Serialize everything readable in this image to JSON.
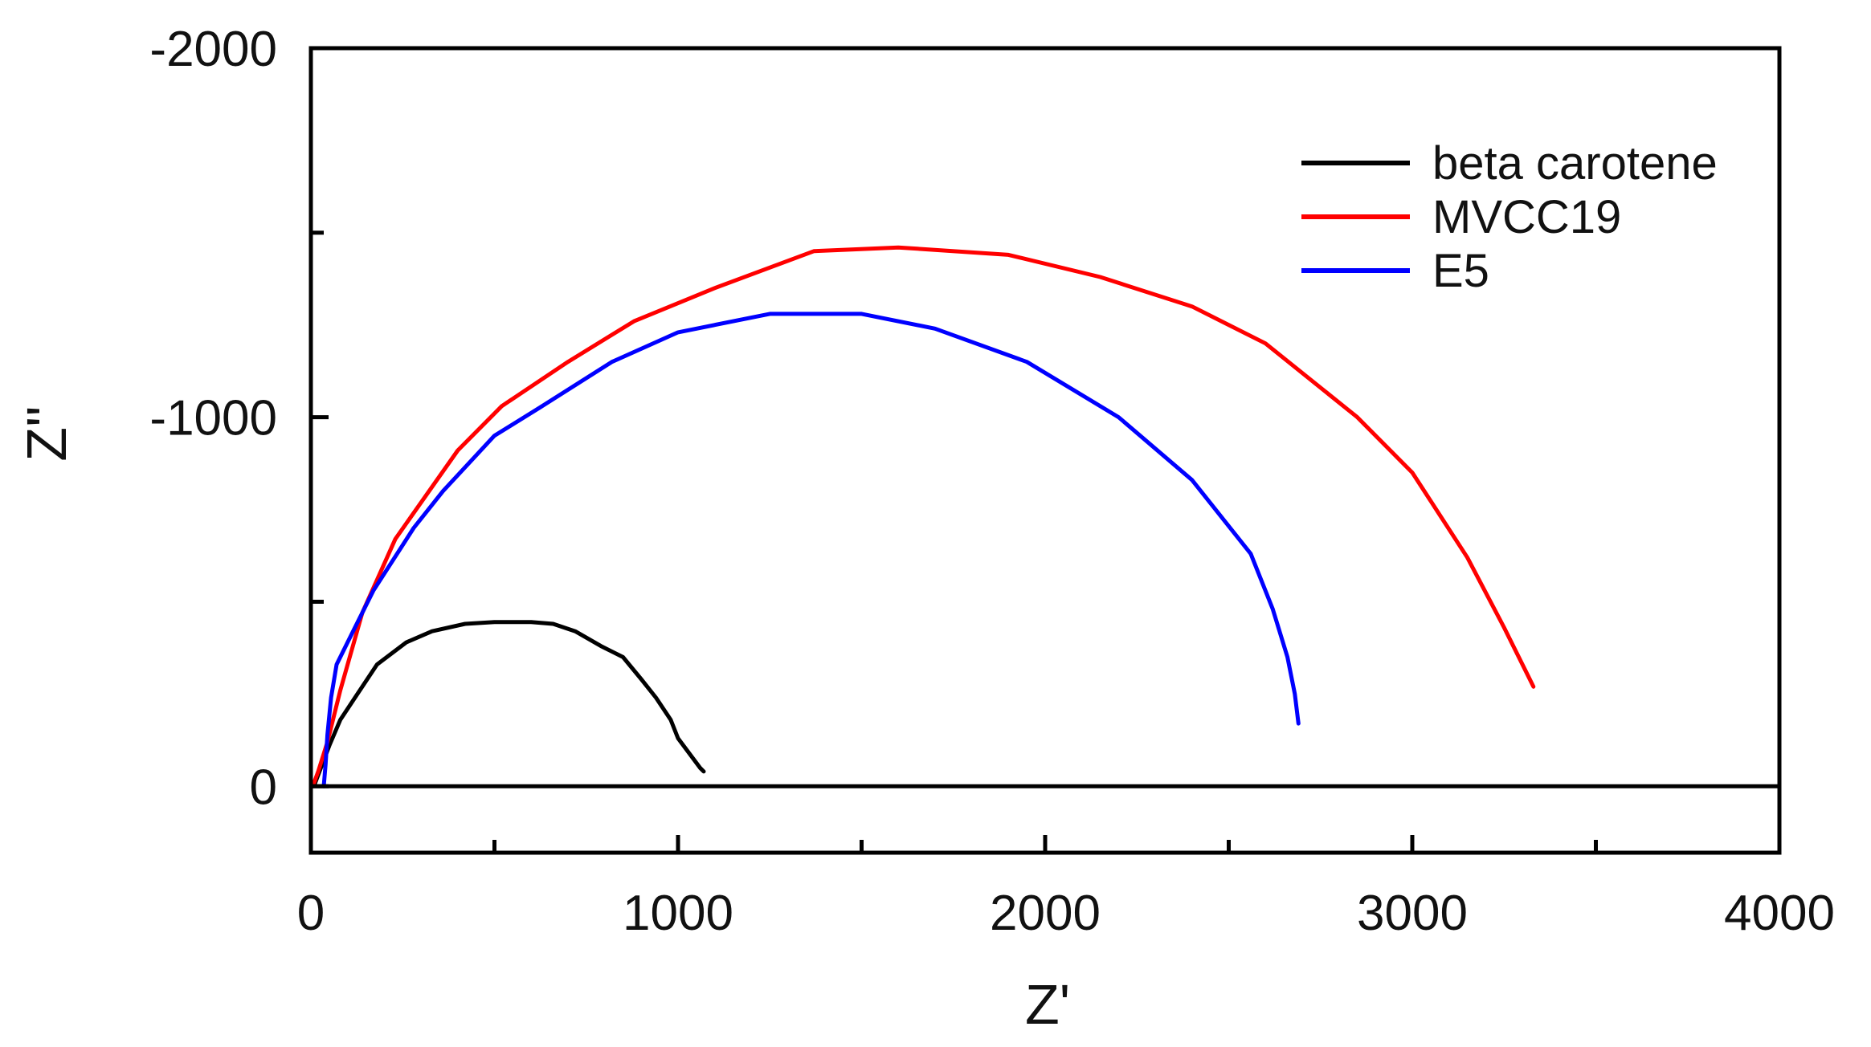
{
  "chart_data": {
    "type": "line",
    "title": "",
    "xlabel": "Z'",
    "ylabel": "Z''",
    "xlim": [
      0,
      4000
    ],
    "ylim": [
      180,
      -2000
    ],
    "x_ticks": [
      0,
      1000,
      2000,
      3000,
      4000
    ],
    "x_tick_labels": [
      "0",
      "1000",
      "2000",
      "3000",
      "4000"
    ],
    "x_minor_ticks": [
      500,
      1500,
      2500,
      3500
    ],
    "y_ticks": [
      -2000,
      -1000,
      0
    ],
    "y_tick_labels": [
      "-2000",
      "-1000",
      "0"
    ],
    "y_minor_ticks": [
      -1500,
      -500
    ],
    "zero_line": true,
    "grid": false,
    "legend_position": "top-right",
    "series": [
      {
        "name": "beta carotene",
        "color": "#000000",
        "x": [
          10,
          50,
          80,
          120,
          180,
          260,
          330,
          420,
          500,
          600,
          660,
          720,
          790,
          850,
          900,
          940,
          980,
          1000,
          1030,
          1060,
          1070
        ],
        "y": [
          -5,
          -110,
          -180,
          -240,
          -330,
          -390,
          -420,
          -440,
          -445,
          -445,
          -440,
          -420,
          -380,
          -350,
          -290,
          -240,
          -180,
          -130,
          -90,
          -50,
          -40
        ]
      },
      {
        "name": "MVCC19",
        "color": "#ff0000",
        "x": [
          5,
          20,
          45,
          80,
          140,
          230,
          400,
          520,
          700,
          880,
          1100,
          1370,
          1600,
          1900,
          2150,
          2400,
          2600,
          2850,
          3000,
          3150,
          3250,
          3330
        ],
        "y": [
          0,
          -40,
          -120,
          -260,
          -470,
          -670,
          -910,
          -1030,
          -1150,
          -1260,
          -1350,
          -1450,
          -1460,
          -1440,
          -1380,
          -1300,
          -1200,
          -1000,
          -850,
          -620,
          -430,
          -270
        ]
      },
      {
        "name": "E5",
        "color": "#0000ff",
        "x": [
          35,
          40,
          45,
          55,
          70,
          120,
          170,
          280,
          360,
          500,
          630,
          820,
          1000,
          1250,
          1500,
          1700,
          1950,
          2200,
          2400,
          2560,
          2620,
          2660,
          2680,
          2690
        ],
        "y": [
          0,
          -60,
          -140,
          -240,
          -330,
          -430,
          -530,
          -700,
          -800,
          -950,
          -1030,
          -1150,
          -1230,
          -1280,
          -1280,
          -1240,
          -1150,
          -1000,
          -830,
          -630,
          -480,
          -350,
          -250,
          -170
        ]
      }
    ]
  }
}
